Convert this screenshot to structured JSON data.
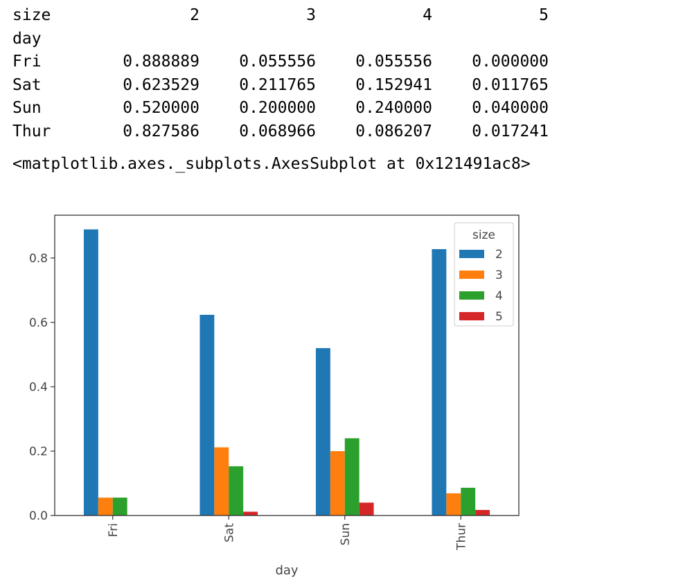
{
  "dataframe": {
    "columns_name": "size",
    "columns": [
      "2",
      "3",
      "4",
      "5"
    ],
    "index_name": "day",
    "rows": [
      {
        "label": "Fri",
        "cells": [
          "0.888889",
          "0.055556",
          "0.055556",
          "0.000000"
        ]
      },
      {
        "label": "Sat",
        "cells": [
          "0.623529",
          "0.211765",
          "0.152941",
          "0.011765"
        ]
      },
      {
        "label": "Sun",
        "cells": [
          "0.520000",
          "0.200000",
          "0.240000",
          "0.040000"
        ]
      },
      {
        "label": "Thur",
        "cells": [
          "0.827586",
          "0.068966",
          "0.086207",
          "0.017241"
        ]
      }
    ]
  },
  "repr_text": "<matplotlib.axes._subplots.AxesSubplot at 0x121491ac8>",
  "chart_data": {
    "type": "bar",
    "categories": [
      "Fri",
      "Sat",
      "Sun",
      "Thur"
    ],
    "series": [
      {
        "name": "2",
        "color": "#1f77b4",
        "values": [
          0.888889,
          0.623529,
          0.52,
          0.827586
        ]
      },
      {
        "name": "3",
        "color": "#ff7f0e",
        "values": [
          0.055556,
          0.211765,
          0.2,
          0.068966
        ]
      },
      {
        "name": "4",
        "color": "#2ca02c",
        "values": [
          0.055556,
          0.152941,
          0.24,
          0.086207
        ]
      },
      {
        "name": "5",
        "color": "#d62728",
        "values": [
          0.0,
          0.011765,
          0.04,
          0.017241
        ]
      }
    ],
    "xlabel": "day",
    "ylabel": "",
    "ylim": [
      0,
      0.933
    ],
    "yticks": [
      0.0,
      0.2,
      0.4,
      0.6,
      0.8
    ],
    "ytick_labels": [
      "0.0",
      "0.2",
      "0.4",
      "0.6",
      "0.8"
    ],
    "legend_title": "size",
    "legend_position": "top-right",
    "grid": false,
    "xtick_rotation": "vertical"
  }
}
